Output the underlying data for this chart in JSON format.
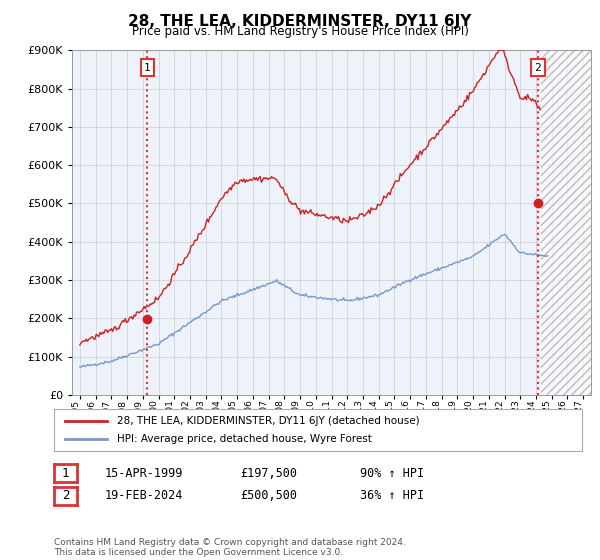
{
  "title": "28, THE LEA, KIDDERMINSTER, DY11 6JY",
  "subtitle": "Price paid vs. HM Land Registry's House Price Index (HPI)",
  "ylim": [
    0,
    900000
  ],
  "xlim_start": 1994.5,
  "xlim_end": 2027.5,
  "transaction1": {
    "date_num": 1999.29,
    "price": 197500,
    "label": "1",
    "date_str": "15-APR-1999",
    "pct": "90% ↑ HPI"
  },
  "transaction2": {
    "date_num": 2024.12,
    "price": 500500,
    "label": "2",
    "date_str": "19-FEB-2024",
    "pct": "36% ↑ HPI"
  },
  "vline_color": "#dd3333",
  "hpi_line_color": "#7799cc",
  "price_line_color": "#cc2222",
  "dot_color": "#cc2222",
  "legend_label1": "28, THE LEA, KIDDERMINSTER, DY11 6JY (detached house)",
  "legend_label2": "HPI: Average price, detached house, Wyre Forest",
  "table_row1": [
    "1",
    "15-APR-1999",
    "£197,500",
    "90% ↑ HPI"
  ],
  "table_row2": [
    "2",
    "19-FEB-2024",
    "£500,500",
    "36% ↑ HPI"
  ],
  "footer": "Contains HM Land Registry data © Crown copyright and database right 2024.\nThis data is licensed under the Open Government Licence v3.0.",
  "background_color": "#ffffff",
  "plot_bg_color": "#eef2fa",
  "grid_color": "#cccccc",
  "hatch_color": "#bbbbbb",
  "cutoff": 2024.3
}
